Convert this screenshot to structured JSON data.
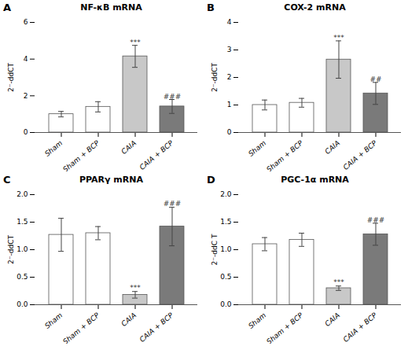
{
  "chart_data": [
    {
      "type": "bar",
      "panel_label": "A",
      "title": "NF-κB mRNA",
      "ylabel": "2⁻-ddCT",
      "categories": [
        "Sham",
        "Sham + BCP",
        "CAIA",
        "CAIA + BCP"
      ],
      "values": [
        1.0,
        1.4,
        4.15,
        1.42
      ],
      "errors": [
        0.15,
        0.28,
        0.6,
        0.38
      ],
      "colors": [
        "#ffffff",
        "#ffffff",
        "#c8c8c8",
        "#7a7a7a"
      ],
      "annotations": [
        {
          "text": "***",
          "category": "CAIA",
          "y": 4.78
        },
        {
          "text": "###",
          "category": "CAIA + BCP",
          "y": 1.82
        }
      ],
      "ylim": [
        0,
        6
      ],
      "yticks": [
        0,
        2,
        4,
        6
      ],
      "grid": false
    },
    {
      "type": "bar",
      "panel_label": "B",
      "title": "COX-2 mRNA",
      "ylabel": "2⁻-ddCT",
      "categories": [
        "Sham",
        "Sham + BCP",
        "CAIA",
        "CAIA + BCP"
      ],
      "values": [
        1.0,
        1.08,
        2.65,
        1.42
      ],
      "errors": [
        0.18,
        0.16,
        0.68,
        0.4
      ],
      "colors": [
        "#ffffff",
        "#ffffff",
        "#c8c8c8",
        "#7a7a7a"
      ],
      "annotations": [
        {
          "text": "***",
          "category": "CAIA",
          "y": 3.35
        },
        {
          "text": "##",
          "category": "CAIA + BCP",
          "y": 1.84
        }
      ],
      "ylim": [
        0,
        4
      ],
      "yticks": [
        0,
        1,
        2,
        3,
        4
      ],
      "grid": false
    },
    {
      "type": "bar",
      "panel_label": "C",
      "title": "PPARγ mRNA",
      "ylabel": "2⁻-ddCT",
      "categories": [
        "Sham",
        "Sham + BCP",
        "CAIA",
        "CAIA + BCP"
      ],
      "values": [
        1.27,
        1.3,
        0.18,
        1.42
      ],
      "errors": [
        0.3,
        0.12,
        0.06,
        0.35
      ],
      "colors": [
        "#ffffff",
        "#ffffff",
        "#c8c8c8",
        "#7a7a7a"
      ],
      "annotations": [
        {
          "text": "***",
          "category": "CAIA",
          "y": 0.26
        },
        {
          "text": "###",
          "category": "CAIA + BCP",
          "y": 1.79
        }
      ],
      "ylim": [
        0.0,
        2.0
      ],
      "yticks": [
        {
          "value": 0,
          "label": "0.0"
        },
        0.5,
        {
          "value": 1,
          "label": "1.0"
        },
        1.5,
        {
          "value": 2,
          "label": "2.0"
        }
      ],
      "grid": false
    },
    {
      "type": "bar",
      "panel_label": "D",
      "title": "PGC-1α  mRNA",
      "ylabel": "2⁻-ddC T",
      "categories": [
        "Sham",
        "Sham + BCP",
        "CAIA",
        "CAIA + BCP"
      ],
      "values": [
        1.1,
        1.18,
        0.3,
        1.28
      ],
      "errors": [
        0.12,
        0.12,
        0.04,
        0.2
      ],
      "colors": [
        "#ffffff",
        "#ffffff",
        "#c8c8c8",
        "#7a7a7a"
      ],
      "annotations": [
        {
          "text": "***",
          "category": "CAIA",
          "y": 0.36
        },
        {
          "text": "###",
          "category": "CAIA + BCP",
          "y": 1.5
        }
      ],
      "ylim": [
        0.0,
        2.0
      ],
      "yticks": [
        {
          "value": 0,
          "label": "0.0"
        },
        0.5,
        {
          "value": 1,
          "label": "1.0"
        },
        1.5,
        {
          "value": 2,
          "label": "2.0"
        }
      ],
      "grid": false
    }
  ]
}
